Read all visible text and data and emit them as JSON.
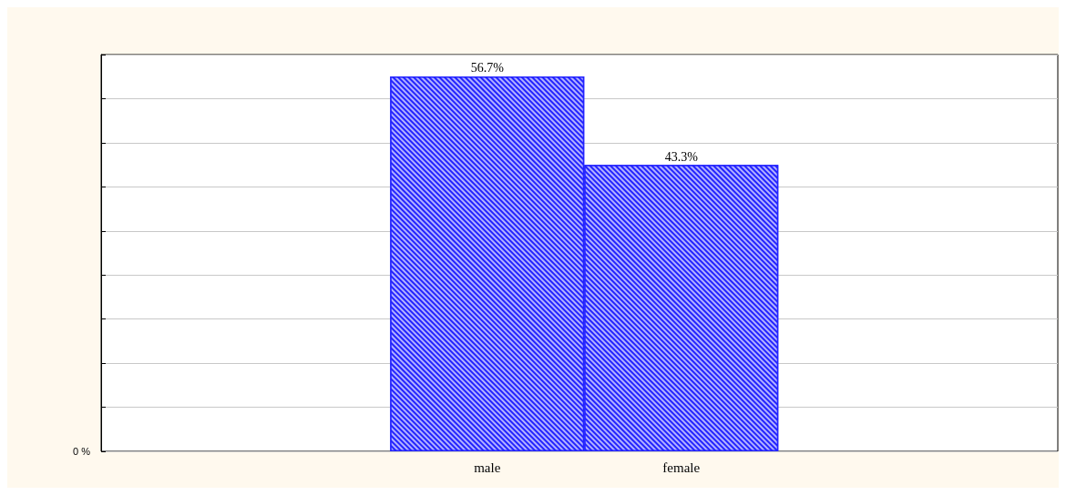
{
  "chart_data": {
    "type": "bar",
    "categories": [
      "male",
      "female"
    ],
    "values": [
      56.7,
      43.3
    ],
    "color": "#2323ff",
    "data_labels": true,
    "value_labels": [
      "56.7%",
      "43.3%"
    ],
    "ylim": [
      0,
      60
    ],
    "annotations": [
      "0 %"
    ],
    "grid": "y"
  }
}
